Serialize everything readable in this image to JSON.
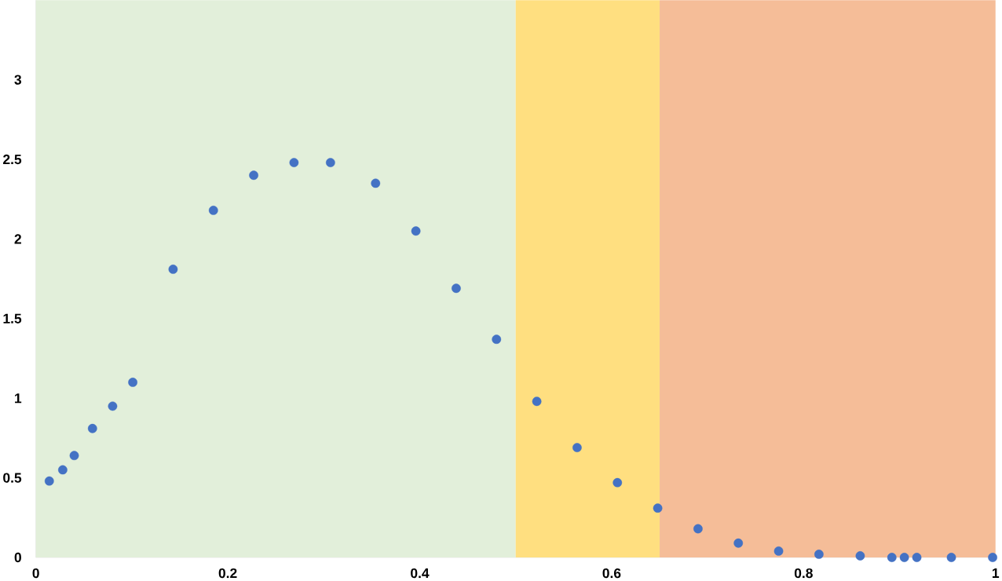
{
  "chart_data": {
    "type": "scatter",
    "marker": "circle",
    "grid": false,
    "xlim": [
      0,
      1
    ],
    "ylim": [
      0,
      3.5
    ],
    "xticks": [
      0,
      0.2,
      0.4,
      0.6,
      0.8,
      1
    ],
    "yticks": [
      0,
      0.5,
      1,
      1.5,
      2,
      2.5,
      3
    ],
    "bands": [
      {
        "axis": "x",
        "from": 0,
        "to": 0.5,
        "color": "#e2efda"
      },
      {
        "axis": "x",
        "from": 0.5,
        "to": 0.65,
        "color": "#ffdf80"
      },
      {
        "axis": "x",
        "from": 0.65,
        "to": 1,
        "color": "#f5bd98"
      }
    ],
    "series": [
      {
        "color": "#4472c4",
        "x": [
          0.014,
          0.028,
          0.04,
          0.059,
          0.08,
          0.101,
          0.143,
          0.185,
          0.227,
          0.269,
          0.307,
          0.354,
          0.396,
          0.438,
          0.48,
          0.522,
          0.564,
          0.606,
          0.648,
          0.69,
          0.732,
          0.774,
          0.816,
          0.859,
          0.892,
          0.905,
          0.918,
          0.954,
          0.997
        ],
        "values": [
          0.48,
          0.55,
          0.64,
          0.81,
          0.95,
          1.1,
          1.81,
          2.18,
          2.4,
          2.48,
          2.48,
          2.35,
          2.05,
          1.69,
          1.37,
          0.98,
          0.69,
          0.47,
          0.31,
          0.18,
          0.09,
          0.04,
          0.02,
          0.01,
          0,
          0,
          0,
          0,
          0
        ]
      }
    ]
  }
}
